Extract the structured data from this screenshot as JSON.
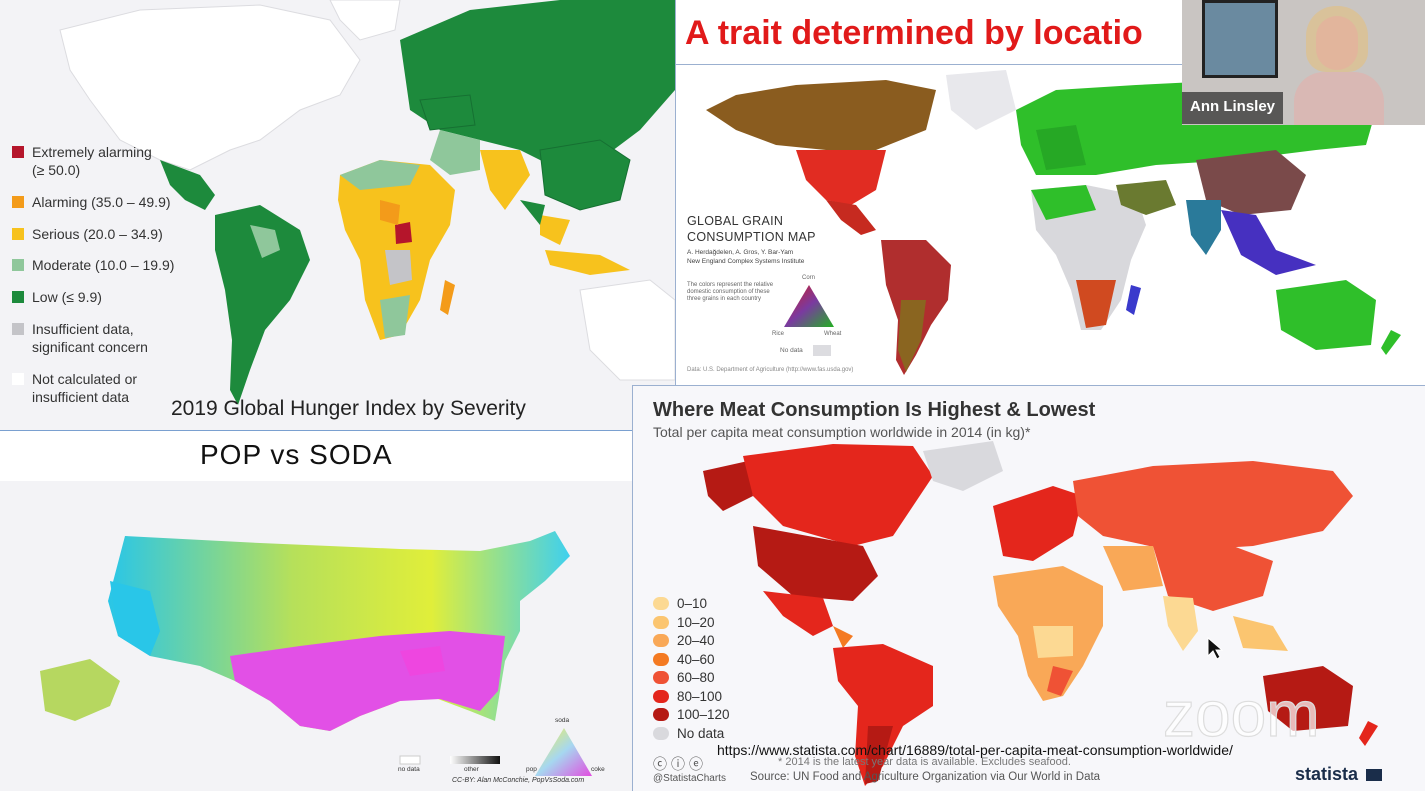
{
  "hunger_panel": {
    "caption": "2019 Global Hunger Index by Severity",
    "legend": [
      {
        "label": "Extremely alarming",
        "sub": "(≥ 50.0)",
        "color": "#b5152b"
      },
      {
        "label": "Alarming (35.0 – 49.9)",
        "sub": "",
        "color": "#f39b1a"
      },
      {
        "label": "Serious (20.0 – 34.9)",
        "sub": "",
        "color": "#f7c21d"
      },
      {
        "label": "Moderate (10.0 – 19.9)",
        "sub": "",
        "color": "#8fc79b"
      },
      {
        "label": "Low (≤ 9.9)",
        "sub": "",
        "color": "#1d8a3c"
      },
      {
        "label": "Insufficient data,",
        "sub": "significant concern",
        "color": "#c4c4c8"
      },
      {
        "label": "Not calculated or",
        "sub": "insufficient data",
        "color": "#ffffff"
      }
    ]
  },
  "grain_panel": {
    "slide_title": "A trait determined by locatio",
    "map_title_line1": "GLOBAL GRAIN",
    "map_title_line2": "CONSUMPTION MAP",
    "authors": "A. Herdağdelen, A. Gros, Y. Bar-Yam",
    "institute": "New England Complex Systems Institute",
    "note": "The colors represent the relative domestic consumption of these three grains in each country",
    "triangle_top": "Corn",
    "triangle_left": "Rice",
    "triangle_right": "Wheat",
    "no_data": "No data",
    "source": "Data: U.S. Department of Agriculture (http://www.fas.usda.gov)"
  },
  "pop_panel": {
    "title": "POP vs SODA",
    "soda_label": "soda",
    "no_data": "no data",
    "other": "other",
    "pop": "pop",
    "coke": "coke",
    "credit": "CC-BY: Alan McConchie, PopVsSoda.com"
  },
  "meat_panel": {
    "title": "Where Meat Consumption Is Highest & Lowest",
    "subtitle": "Total per capita meat consumption worldwide in 2014 (in kg)*",
    "legend": [
      {
        "label": "0–10",
        "color": "#fcd993"
      },
      {
        "label": "10–20",
        "color": "#fbc570"
      },
      {
        "label": "20–40",
        "color": "#f9a857"
      },
      {
        "label": "40–60",
        "color": "#f47a22"
      },
      {
        "label": "60–80",
        "color": "#ef5235"
      },
      {
        "label": "80–100",
        "color": "#e4261c"
      },
      {
        "label": "100–120",
        "color": "#b51a14"
      },
      {
        "label": "No data",
        "color": "#d9d9dd"
      }
    ],
    "url": "https://www.statista.com/chart/16889/total-per-capita-meat-consumption-worldwide/",
    "footnote": "* 2014 is the latest year data is available. Excludes seafood.",
    "source": "Source: UN Food and Agriculture Organization via Our World in Data",
    "handle": "@StatistaCharts",
    "brand": "statista"
  },
  "camera": {
    "name": "Ann Linsley"
  },
  "overlay": {
    "watermark": "zoom"
  }
}
